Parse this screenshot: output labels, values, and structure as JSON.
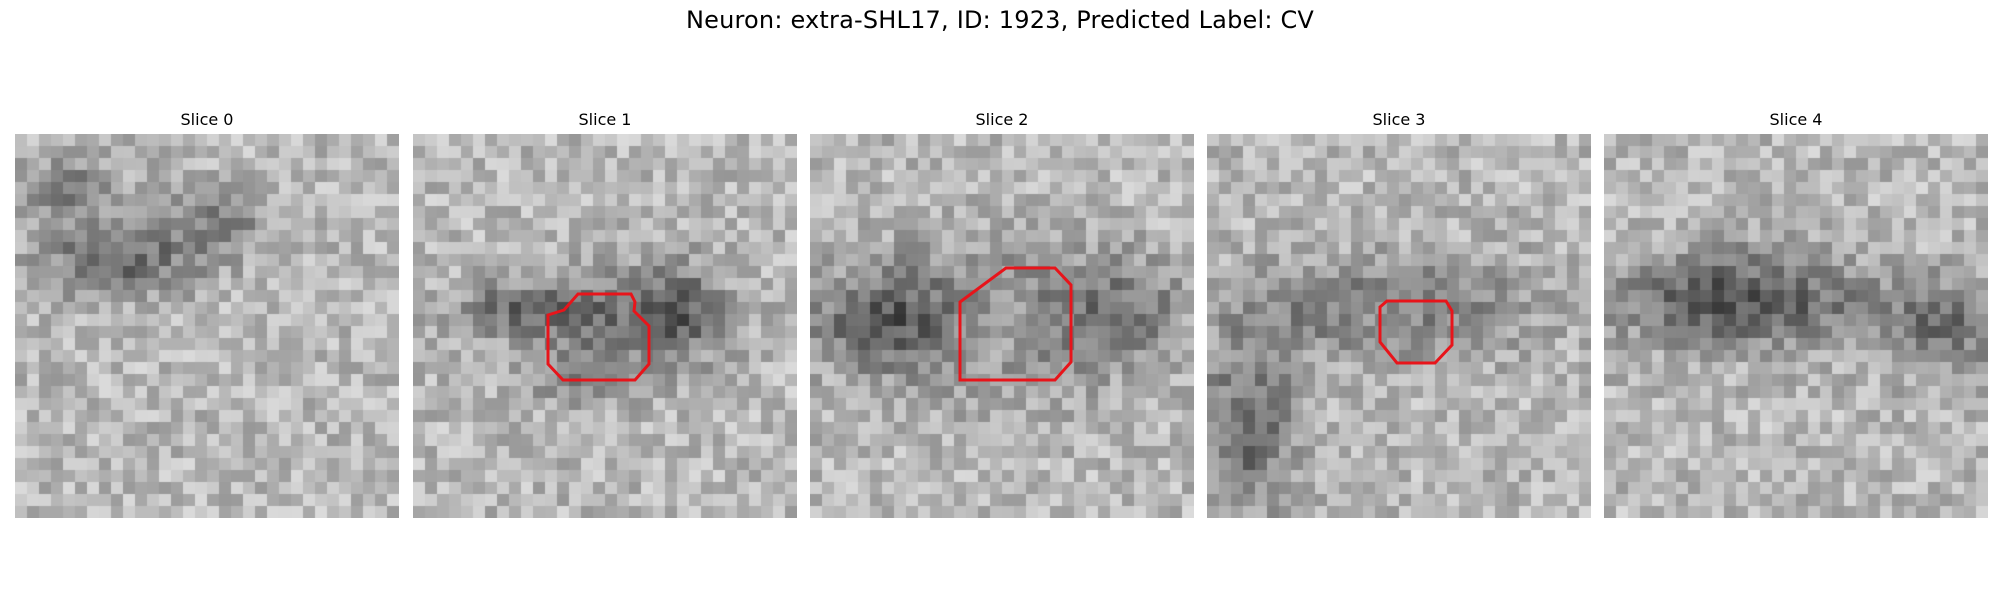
{
  "figure": {
    "title": "Neuron: extra-SHL17, ID: 1923, Predicted Label: CV",
    "outline_color": "#e8141a",
    "colormap": "grayscale",
    "slices": [
      {
        "label": "Slice 0",
        "has_outline": false
      },
      {
        "label": "Slice 1",
        "has_outline": true
      },
      {
        "label": "Slice 2",
        "has_outline": true
      },
      {
        "label": "Slice 3",
        "has_outline": true
      },
      {
        "label": "Slice 4",
        "has_outline": false
      }
    ]
  }
}
